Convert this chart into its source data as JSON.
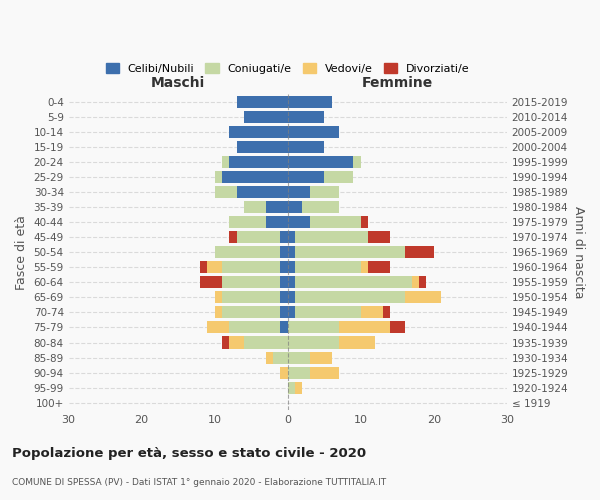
{
  "age_groups": [
    "100+",
    "95-99",
    "90-94",
    "85-89",
    "80-84",
    "75-79",
    "70-74",
    "65-69",
    "60-64",
    "55-59",
    "50-54",
    "45-49",
    "40-44",
    "35-39",
    "30-34",
    "25-29",
    "20-24",
    "15-19",
    "10-14",
    "5-9",
    "0-4"
  ],
  "birth_years": [
    "≤ 1919",
    "1920-1924",
    "1925-1929",
    "1930-1934",
    "1935-1939",
    "1940-1944",
    "1945-1949",
    "1950-1954",
    "1955-1959",
    "1960-1964",
    "1965-1969",
    "1970-1974",
    "1975-1979",
    "1980-1984",
    "1985-1989",
    "1990-1994",
    "1995-1999",
    "2000-2004",
    "2005-2009",
    "2010-2014",
    "2015-2019"
  ],
  "males": {
    "celibi": [
      0,
      0,
      0,
      0,
      0,
      1,
      1,
      1,
      1,
      1,
      1,
      1,
      3,
      3,
      7,
      9,
      8,
      7,
      8,
      6,
      7
    ],
    "coniugati": [
      0,
      0,
      0,
      2,
      6,
      7,
      8,
      8,
      8,
      8,
      9,
      6,
      5,
      3,
      3,
      1,
      1,
      0,
      0,
      0,
      0
    ],
    "vedovi": [
      0,
      0,
      1,
      1,
      2,
      3,
      1,
      1,
      0,
      2,
      0,
      0,
      0,
      0,
      0,
      0,
      0,
      0,
      0,
      0,
      0
    ],
    "divorziati": [
      0,
      0,
      0,
      0,
      1,
      0,
      0,
      0,
      3,
      1,
      0,
      1,
      0,
      0,
      0,
      0,
      0,
      0,
      0,
      0,
      0
    ]
  },
  "females": {
    "nubili": [
      0,
      0,
      0,
      0,
      0,
      0,
      1,
      1,
      1,
      1,
      1,
      1,
      3,
      2,
      3,
      5,
      9,
      5,
      7,
      5,
      6
    ],
    "coniugate": [
      0,
      1,
      3,
      3,
      7,
      7,
      9,
      15,
      16,
      9,
      15,
      10,
      7,
      5,
      4,
      4,
      1,
      0,
      0,
      0,
      0
    ],
    "vedove": [
      0,
      1,
      4,
      3,
      5,
      7,
      3,
      5,
      1,
      1,
      0,
      0,
      0,
      0,
      0,
      0,
      0,
      0,
      0,
      0,
      0
    ],
    "divorziate": [
      0,
      0,
      0,
      0,
      0,
      2,
      1,
      0,
      1,
      3,
      4,
      3,
      1,
      0,
      0,
      0,
      0,
      0,
      0,
      0,
      0
    ]
  },
  "colors": {
    "celibi_nubili": "#3d6fad",
    "coniugati": "#c5d8a4",
    "vedovi": "#f5c96e",
    "divorziati": "#c0392b"
  },
  "xlim": 30,
  "title": "Popolazione per età, sesso e stato civile - 2020",
  "subtitle": "COMUNE DI SPESSA (PV) - Dati ISTAT 1° gennaio 2020 - Elaborazione TUTTITALIA.IT",
  "ylabel_left": "Fasce di età",
  "ylabel_right": "Anni di nascita",
  "xlabel_left": "Maschi",
  "xlabel_right": "Femmine",
  "legend_labels": [
    "Celibi/Nubili",
    "Coniugati/e",
    "Vedovi/e",
    "Divorziati/e"
  ],
  "background_color": "#f9f9f9"
}
